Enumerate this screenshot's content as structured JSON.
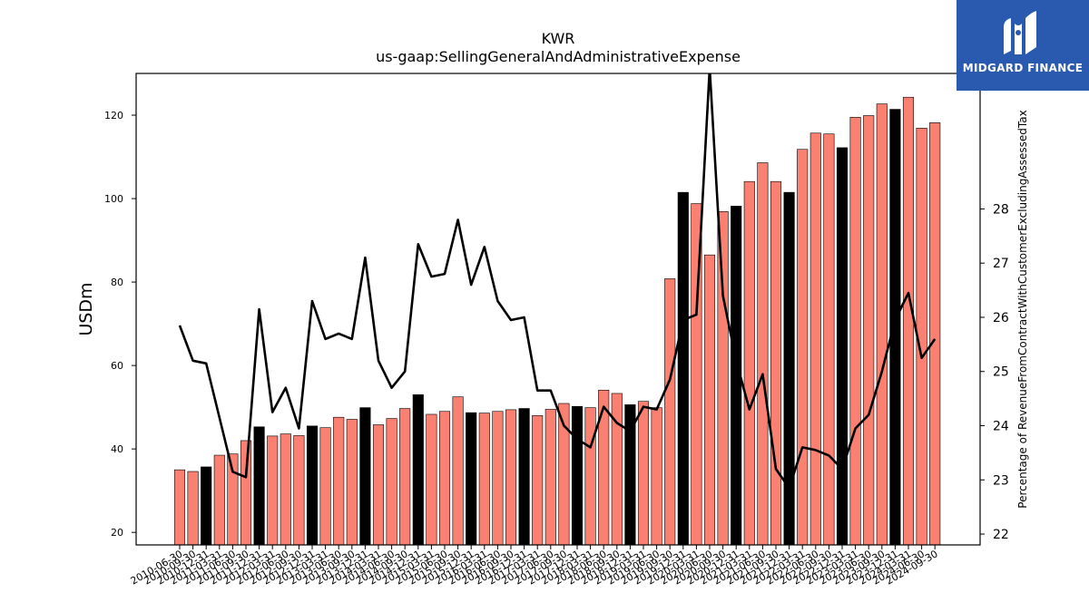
{
  "chart_data": {
    "type": "bar",
    "title": "KWR",
    "subtitle": "us-gaap:SellingGeneralAndAdministrativeExpense",
    "ylabel": "USDm",
    "y2label": "Percentage of RevenueFromContractWithCustomerExcludingAssessedTax",
    "ylim": [
      17,
      130
    ],
    "y2lim": [
      21.8,
      30.5
    ],
    "yticks": [
      20,
      40,
      60,
      80,
      100,
      120
    ],
    "y2ticks": [
      22,
      23,
      24,
      25,
      26,
      27,
      28
    ],
    "categories": [
      "2010-06-30",
      "2010-09-30",
      "2010-12-31",
      "2011-03-31",
      "2011-06-30",
      "2011-09-30",
      "2011-12-31",
      "2012-03-31",
      "2012-06-30",
      "2012-09-30",
      "2012-12-31",
      "2013-03-31",
      "2013-06-30",
      "2013-09-30",
      "2013-12-31",
      "2014-03-31",
      "2014-06-30",
      "2014-09-30",
      "2014-12-31",
      "2015-03-31",
      "2015-06-30",
      "2015-09-30",
      "2015-12-31",
      "2016-03-31",
      "2016-06-30",
      "2016-09-30",
      "2016-12-31",
      "2017-03-31",
      "2017-06-30",
      "2017-09-30",
      "2017-12-31",
      "2018-03-31",
      "2018-06-30",
      "2018-09-30",
      "2018-12-31",
      "2019-03-31",
      "2019-06-30",
      "2019-09-30",
      "2019-12-31",
      "2020-03-31",
      "2020-06-30",
      "2020-09-30",
      "2020-12-31",
      "2021-03-31",
      "2021-06-30",
      "2021-09-30",
      "2021-12-31",
      "2022-03-31",
      "2022-06-30",
      "2022-09-30",
      "2022-12-31",
      "2023-03-31",
      "2023-06-30",
      "2023-09-30",
      "2023-12-31",
      "2024-03-31",
      "2024-06-30",
      "2024-09-30"
    ],
    "series": [
      {
        "values": [
          35.0,
          34.6,
          35.7,
          38.5,
          38.8,
          42.0,
          45.3,
          43.1,
          43.6,
          43.2,
          45.5,
          45.1,
          47.6,
          47.1,
          49.9,
          45.8,
          47.3,
          49.7,
          53.0,
          48.3,
          49.0,
          52.5,
          48.7,
          48.6,
          49.0,
          49.4,
          49.7,
          48.0,
          49.5,
          50.9,
          50.2,
          49.9,
          54.1,
          53.3,
          50.6,
          51.4,
          49.9,
          80.8,
          101.5,
          98.8,
          86.5,
          96.9,
          98.2,
          104.1,
          108.6,
          104.1,
          101.5,
          111.8,
          115.7,
          115.5,
          112.2,
          119.5,
          119.9,
          122.7,
          121.4,
          124.3,
          116.9,
          118.2
        ],
        "colors": [
          "salmon",
          "salmon",
          "black",
          "salmon",
          "salmon",
          "salmon",
          "black",
          "salmon",
          "salmon",
          "salmon",
          "black",
          "salmon",
          "salmon",
          "salmon",
          "black",
          "salmon",
          "salmon",
          "salmon",
          "black",
          "salmon",
          "salmon",
          "salmon",
          "black",
          "salmon",
          "salmon",
          "salmon",
          "black",
          "salmon",
          "salmon",
          "salmon",
          "black",
          "salmon",
          "salmon",
          "salmon",
          "black",
          "salmon",
          "salmon",
          "salmon",
          "black",
          "salmon",
          "salmon",
          "salmon",
          "black",
          "salmon",
          "salmon",
          "salmon",
          "black",
          "salmon",
          "salmon",
          "salmon",
          "black",
          "salmon",
          "salmon",
          "salmon",
          "black",
          "salmon",
          "salmon",
          "salmon"
        ]
      },
      {
        "type": "line",
        "axis": "right",
        "values": [
          25.85,
          25.2,
          25.15,
          24.15,
          23.15,
          23.05,
          26.15,
          24.25,
          24.7,
          23.95,
          26.3,
          25.6,
          25.7,
          25.6,
          27.1,
          25.2,
          24.7,
          25.0,
          27.35,
          26.75,
          26.8,
          27.8,
          26.6,
          27.3,
          26.3,
          25.95,
          26.0,
          24.65,
          24.65,
          24.0,
          23.75,
          23.6,
          24.35,
          24.05,
          23.9,
          24.35,
          24.3,
          24.85,
          25.95,
          26.05,
          30.6,
          26.4,
          25.2,
          24.3,
          24.95,
          23.2,
          22.85,
          23.6,
          23.55,
          23.45,
          23.2,
          23.95,
          24.2,
          25.0,
          25.95,
          26.45,
          25.25,
          25.6
        ]
      }
    ],
    "palette": {
      "salmon": "#fa8072",
      "black": "#000000",
      "line": "#000000",
      "edge": "#000000"
    },
    "grid": false,
    "legend": "none"
  },
  "logo": {
    "text": "MIDGARD FINANCE",
    "bg": "#2a5ab0"
  }
}
